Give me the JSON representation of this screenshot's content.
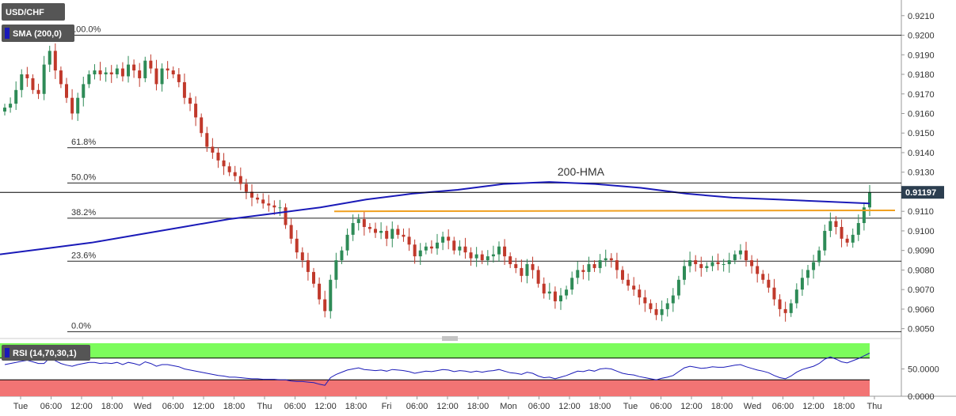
{
  "chart_data": {
    "type": "candlestick",
    "symbol": "USD/CHF",
    "indicator_label": "SMA (200,0)",
    "annotation": "200-HMA",
    "last_price": "0.91197",
    "ylim": [
      0.9045,
      0.9218
    ],
    "y_ticks": [
      "0.9050",
      "0.9060",
      "0.9070",
      "0.9080",
      "0.9090",
      "0.9100",
      "0.9110",
      "0.9120",
      "0.9130",
      "0.9140",
      "0.9150",
      "0.9160",
      "0.9170",
      "0.9180",
      "0.9190",
      "0.9200",
      "0.9210"
    ],
    "x_ticks": [
      "Tue",
      "06:00",
      "12:00",
      "18:00",
      "Wed",
      "06:00",
      "12:00",
      "18:00",
      "Thu",
      "06:00",
      "12:00",
      "18:00",
      "Fri",
      "06:00",
      "12:00",
      "18:00",
      "Mon",
      "06:00",
      "12:00",
      "18:00",
      "Tue",
      "06:00",
      "12:00",
      "18:00",
      "Wed",
      "06:00",
      "12:00",
      "18:00",
      "Thu"
    ],
    "fib_levels": [
      {
        "label": "100.0%",
        "value": 0.92
      },
      {
        "label": "61.8%",
        "value": 0.91425
      },
      {
        "label": "50.0%",
        "value": 0.91245
      },
      {
        "label": "38.2%",
        "value": 0.91065
      },
      {
        "label": "23.6%",
        "value": 0.90845
      },
      {
        "label": "0.0%",
        "value": 0.90485
      }
    ],
    "resistance_line": {
      "start": 0.911,
      "end": 0.91105
    },
    "last_price_line": 0.91197,
    "hma": [
      0.9088,
      0.9091,
      0.9094,
      0.9098,
      0.9102,
      0.9106,
      0.9109,
      0.9112,
      0.9116,
      0.9119,
      0.9121,
      0.9124,
      0.9125,
      0.9124,
      0.9122,
      0.9119,
      0.9117,
      0.9116,
      0.9115,
      0.9114
    ],
    "closes": [
      0.9163,
      0.9165,
      0.9172,
      0.918,
      0.9178,
      0.9172,
      0.917,
      0.9185,
      0.9192,
      0.9182,
      0.9175,
      0.9168,
      0.916,
      0.9168,
      0.9175,
      0.918,
      0.9182,
      0.918,
      0.9181,
      0.918,
      0.9183,
      0.9179,
      0.9185,
      0.9182,
      0.9178,
      0.9187,
      0.9183,
      0.9175,
      0.9183,
      0.9182,
      0.918,
      0.9176,
      0.9168,
      0.9165,
      0.9158,
      0.915,
      0.9143,
      0.914,
      0.9136,
      0.9133,
      0.913,
      0.9128,
      0.9124,
      0.912,
      0.9117,
      0.9116,
      0.9114,
      0.9113,
      0.9112,
      0.9112,
      0.9103,
      0.9096,
      0.9089,
      0.9085,
      0.9079,
      0.9073,
      0.9065,
      0.9059,
      0.9075,
      0.9085,
      0.909,
      0.9098,
      0.9104,
      0.9106,
      0.9102,
      0.9101,
      0.9099,
      0.91,
      0.9096,
      0.9101,
      0.9098,
      0.9097,
      0.9093,
      0.9087,
      0.909,
      0.9092,
      0.9091,
      0.9094,
      0.9097,
      0.9095,
      0.909,
      0.9092,
      0.9089,
      0.9086,
      0.9088,
      0.9085,
      0.9087,
      0.9088,
      0.9092,
      0.9087,
      0.9083,
      0.9081,
      0.9077,
      0.9083,
      0.908,
      0.9073,
      0.9068,
      0.9069,
      0.9064,
      0.9067,
      0.907,
      0.9076,
      0.908,
      0.9079,
      0.9083,
      0.9081,
      0.9085,
      0.9086,
      0.9085,
      0.908,
      0.9075,
      0.9072,
      0.907,
      0.9066,
      0.9063,
      0.906,
      0.9057,
      0.906,
      0.9063,
      0.9067,
      0.9075,
      0.9082,
      0.9085,
      0.9083,
      0.9081,
      0.9082,
      0.9084,
      0.9083,
      0.9083,
      0.9085,
      0.9088,
      0.909,
      0.9085,
      0.9082,
      0.9078,
      0.9075,
      0.9071,
      0.9065,
      0.906,
      0.9058,
      0.9063,
      0.907,
      0.9076,
      0.908,
      0.9084,
      0.909,
      0.91,
      0.9105,
      0.9102,
      0.9096,
      0.9094,
      0.9098,
      0.9104,
      0.9112,
      0.91197
    ],
    "rsi": {
      "label": "RSI (14,70,30,1)",
      "ylim": [
        0,
        100
      ],
      "ticks": [
        "50.0000",
        "0.0000"
      ],
      "zones": {
        "overbought": 70,
        "oversold": 30
      },
      "values": [
        58,
        60,
        62,
        64,
        66,
        63,
        60,
        60,
        70,
        65,
        60,
        57,
        55,
        58,
        60,
        62,
        62,
        60,
        61,
        60,
        62,
        58,
        62,
        60,
        57,
        63,
        60,
        55,
        58,
        58,
        56,
        54,
        50,
        48,
        46,
        44,
        42,
        40,
        38,
        37,
        35,
        35,
        34,
        33,
        32,
        32,
        31,
        31,
        31,
        30,
        30,
        28,
        27,
        27,
        26,
        25,
        22,
        20,
        34,
        40,
        44,
        48,
        50,
        52,
        49,
        48,
        47,
        48,
        46,
        49,
        48,
        47,
        45,
        42,
        44,
        46,
        45,
        47,
        49,
        48,
        45,
        47,
        46,
        44,
        46,
        44,
        46,
        47,
        49,
        46,
        43,
        42,
        40,
        44,
        42,
        37,
        34,
        35,
        32,
        35,
        38,
        42,
        46,
        45,
        48,
        46,
        50,
        51,
        50,
        46,
        42,
        40,
        39,
        36,
        34,
        32,
        30,
        33,
        35,
        38,
        45,
        52,
        55,
        53,
        51,
        52,
        54,
        53,
        53,
        55,
        57,
        58,
        54,
        51,
        48,
        46,
        43,
        38,
        34,
        32,
        37,
        44,
        49,
        52,
        55,
        60,
        68,
        72,
        68,
        63,
        61,
        65,
        69,
        74,
        79
      ]
    }
  }
}
